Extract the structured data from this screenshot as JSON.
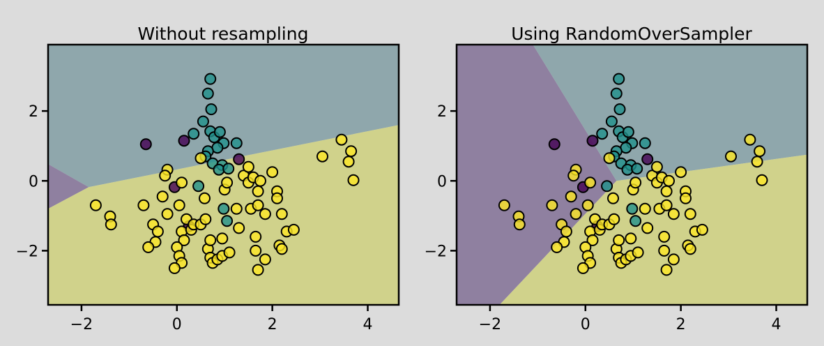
{
  "figure": {
    "background": "#dcdcdc"
  },
  "class_colors": {
    "0": "#440154",
    "1": "#21918c",
    "2": "#fde725"
  },
  "region_colors": {
    "0": "#8f80a0",
    "1": "#8fa7ac",
    "2": "#d0d28b"
  },
  "chart_data": [
    {
      "type": "scatter",
      "title": "Without resampling",
      "xlim": [
        -2.7,
        4.65
      ],
      "ylim": [
        -3.55,
        3.9
      ],
      "xticks": [
        -2,
        0,
        2,
        4
      ],
      "yticks": [
        -2,
        0,
        2
      ],
      "tick_labels_x": [
        "−2",
        "0",
        "2",
        "4"
      ],
      "tick_labels_y": [
        "−2",
        "0",
        "2"
      ],
      "grid": false,
      "decision_regions": [
        {
          "class": 1,
          "polygon": [
            [
              -2.7,
              3.9
            ],
            [
              4.65,
              3.9
            ],
            [
              4.65,
              1.6
            ],
            [
              -1.85,
              -0.18
            ],
            [
              -2.7,
              0.48
            ]
          ]
        },
        {
          "class": 0,
          "polygon": [
            [
              -2.7,
              0.48
            ],
            [
              -1.85,
              -0.18
            ],
            [
              -2.7,
              -0.8
            ]
          ]
        },
        {
          "class": 2,
          "polygon": [
            [
              -2.7,
              -0.8
            ],
            [
              -1.85,
              -0.18
            ],
            [
              4.65,
              1.6
            ],
            [
              4.65,
              -3.55
            ],
            [
              -2.7,
              -3.55
            ]
          ]
        }
      ]
    },
    {
      "type": "scatter",
      "title": "Using RandomOverSampler",
      "xlim": [
        -2.7,
        4.65
      ],
      "ylim": [
        -3.55,
        3.9
      ],
      "xticks": [
        -2,
        0,
        2,
        4
      ],
      "yticks": [
        -2,
        0,
        2
      ],
      "tick_labels_x": [
        "−2",
        "0",
        "2",
        "4"
      ],
      "tick_labels_y": [
        "−2",
        "0",
        "2"
      ],
      "grid": false,
      "decision_regions": [
        {
          "class": 0,
          "polygon": [
            [
              -2.7,
              3.9
            ],
            [
              -1.1,
              3.9
            ],
            [
              0.65,
              0.0
            ],
            [
              -1.8,
              -3.55
            ],
            [
              -2.7,
              -3.55
            ]
          ]
        },
        {
          "class": 1,
          "polygon": [
            [
              -1.1,
              3.9
            ],
            [
              4.65,
              3.9
            ],
            [
              4.65,
              0.75
            ],
            [
              0.65,
              0.0
            ]
          ]
        },
        {
          "class": 2,
          "polygon": [
            [
              0.65,
              0.0
            ],
            [
              4.65,
              0.75
            ],
            [
              4.65,
              -3.55
            ],
            [
              -1.8,
              -3.55
            ]
          ]
        }
      ]
    }
  ],
  "points": [
    {
      "x": -0.65,
      "y": 1.05,
      "c": 0
    },
    {
      "x": 0.15,
      "y": 1.15,
      "c": 0
    },
    {
      "x": 1.3,
      "y": 0.62,
      "c": 0
    },
    {
      "x": -0.05,
      "y": -0.18,
      "c": 0
    },
    {
      "x": 0.25,
      "y": -1.3,
      "c": 0
    },
    {
      "x": 0.7,
      "y": 2.92,
      "c": 1
    },
    {
      "x": 0.65,
      "y": 2.5,
      "c": 1
    },
    {
      "x": 0.72,
      "y": 2.05,
      "c": 1
    },
    {
      "x": 0.55,
      "y": 1.7,
      "c": 1
    },
    {
      "x": 0.35,
      "y": 1.35,
      "c": 1
    },
    {
      "x": 0.7,
      "y": 1.42,
      "c": 1
    },
    {
      "x": 0.78,
      "y": 1.25,
      "c": 1
    },
    {
      "x": 0.9,
      "y": 1.4,
      "c": 1
    },
    {
      "x": 0.98,
      "y": 1.08,
      "c": 1
    },
    {
      "x": 1.25,
      "y": 1.08,
      "c": 1
    },
    {
      "x": 0.85,
      "y": 0.95,
      "c": 1
    },
    {
      "x": 0.65,
      "y": 0.85,
      "c": 1
    },
    {
      "x": 0.6,
      "y": 0.7,
      "c": 1
    },
    {
      "x": 0.75,
      "y": 0.5,
      "c": 1
    },
    {
      "x": 0.95,
      "y": 0.45,
      "c": 1
    },
    {
      "x": 0.88,
      "y": 0.32,
      "c": 1
    },
    {
      "x": 1.08,
      "y": 0.35,
      "c": 1
    },
    {
      "x": 0.45,
      "y": -0.15,
      "c": 1
    },
    {
      "x": 0.98,
      "y": -0.8,
      "c": 1
    },
    {
      "x": 1.05,
      "y": -1.15,
      "c": 1
    },
    {
      "x": -1.7,
      "y": -0.7,
      "c": 2
    },
    {
      "x": -1.4,
      "y": -1.02,
      "c": 2
    },
    {
      "x": -1.38,
      "y": -1.25,
      "c": 2
    },
    {
      "x": -0.7,
      "y": -0.7,
      "c": 2
    },
    {
      "x": -0.5,
      "y": -1.25,
      "c": 2
    },
    {
      "x": -0.4,
      "y": -1.45,
      "c": 2
    },
    {
      "x": -0.45,
      "y": -1.75,
      "c": 2
    },
    {
      "x": -0.6,
      "y": -1.9,
      "c": 2
    },
    {
      "x": -0.2,
      "y": 0.32,
      "c": 2
    },
    {
      "x": -0.25,
      "y": 0.15,
      "c": 2
    },
    {
      "x": -0.3,
      "y": -0.45,
      "c": 2
    },
    {
      "x": -0.2,
      "y": -0.95,
      "c": 2
    },
    {
      "x": 0.1,
      "y": -0.05,
      "c": 2
    },
    {
      "x": 0.05,
      "y": -0.7,
      "c": 2
    },
    {
      "x": 0.2,
      "y": -1.1,
      "c": 2
    },
    {
      "x": 0.1,
      "y": -1.45,
      "c": 2
    },
    {
      "x": 0.15,
      "y": -1.7,
      "c": 2
    },
    {
      "x": 0.0,
      "y": -1.9,
      "c": 2
    },
    {
      "x": 0.05,
      "y": -2.15,
      "c": 2
    },
    {
      "x": 0.1,
      "y": -2.35,
      "c": 2
    },
    {
      "x": -0.05,
      "y": -2.5,
      "c": 2
    },
    {
      "x": 0.3,
      "y": -1.4,
      "c": 2
    },
    {
      "x": 0.35,
      "y": -1.25,
      "c": 2
    },
    {
      "x": 0.5,
      "y": -1.25,
      "c": 2
    },
    {
      "x": 0.6,
      "y": -1.1,
      "c": 2
    },
    {
      "x": 0.5,
      "y": 0.65,
      "c": 2
    },
    {
      "x": 0.58,
      "y": -0.5,
      "c": 2
    },
    {
      "x": 0.65,
      "y": -1.95,
      "c": 2
    },
    {
      "x": 0.7,
      "y": -1.7,
      "c": 2
    },
    {
      "x": 0.7,
      "y": -2.2,
      "c": 2
    },
    {
      "x": 0.75,
      "y": -2.35,
      "c": 2
    },
    {
      "x": 0.85,
      "y": -2.25,
      "c": 2
    },
    {
      "x": 0.95,
      "y": -2.15,
      "c": 2
    },
    {
      "x": 0.95,
      "y": -1.65,
      "c": 2
    },
    {
      "x": 1.1,
      "y": -2.05,
      "c": 2
    },
    {
      "x": 1.0,
      "y": -0.25,
      "c": 2
    },
    {
      "x": 1.05,
      "y": -0.05,
      "c": 2
    },
    {
      "x": 1.25,
      "y": -0.8,
      "c": 2
    },
    {
      "x": 1.3,
      "y": -1.35,
      "c": 2
    },
    {
      "x": 1.4,
      "y": 0.15,
      "c": 2
    },
    {
      "x": 1.5,
      "y": 0.4,
      "c": 2
    },
    {
      "x": 1.5,
      "y": -0.05,
      "c": 2
    },
    {
      "x": 1.55,
      "y": -0.8,
      "c": 2
    },
    {
      "x": 1.6,
      "y": 0.1,
      "c": 2
    },
    {
      "x": 1.7,
      "y": -0.3,
      "c": 2
    },
    {
      "x": 1.75,
      "y": 0.0,
      "c": 2
    },
    {
      "x": 1.7,
      "y": -0.7,
      "c": 2
    },
    {
      "x": 1.65,
      "y": -1.6,
      "c": 2
    },
    {
      "x": 1.65,
      "y": -2.0,
      "c": 2
    },
    {
      "x": 1.7,
      "y": -2.55,
      "c": 2
    },
    {
      "x": 1.85,
      "y": -2.25,
      "c": 2
    },
    {
      "x": 1.85,
      "y": -0.95,
      "c": 2
    },
    {
      "x": 2.0,
      "y": 0.25,
      "c": 2
    },
    {
      "x": 2.1,
      "y": -0.3,
      "c": 2
    },
    {
      "x": 2.1,
      "y": -0.5,
      "c": 2
    },
    {
      "x": 2.2,
      "y": -0.95,
      "c": 2
    },
    {
      "x": 2.15,
      "y": -1.85,
      "c": 2
    },
    {
      "x": 2.2,
      "y": -1.95,
      "c": 2
    },
    {
      "x": 2.3,
      "y": -1.45,
      "c": 2
    },
    {
      "x": 2.45,
      "y": -1.4,
      "c": 2
    },
    {
      "x": 3.05,
      "y": 0.7,
      "c": 2
    },
    {
      "x": 3.45,
      "y": 1.18,
      "c": 2
    },
    {
      "x": 3.65,
      "y": 0.85,
      "c": 2
    },
    {
      "x": 3.6,
      "y": 0.55,
      "c": 2
    },
    {
      "x": 3.7,
      "y": 0.02,
      "c": 2
    }
  ]
}
